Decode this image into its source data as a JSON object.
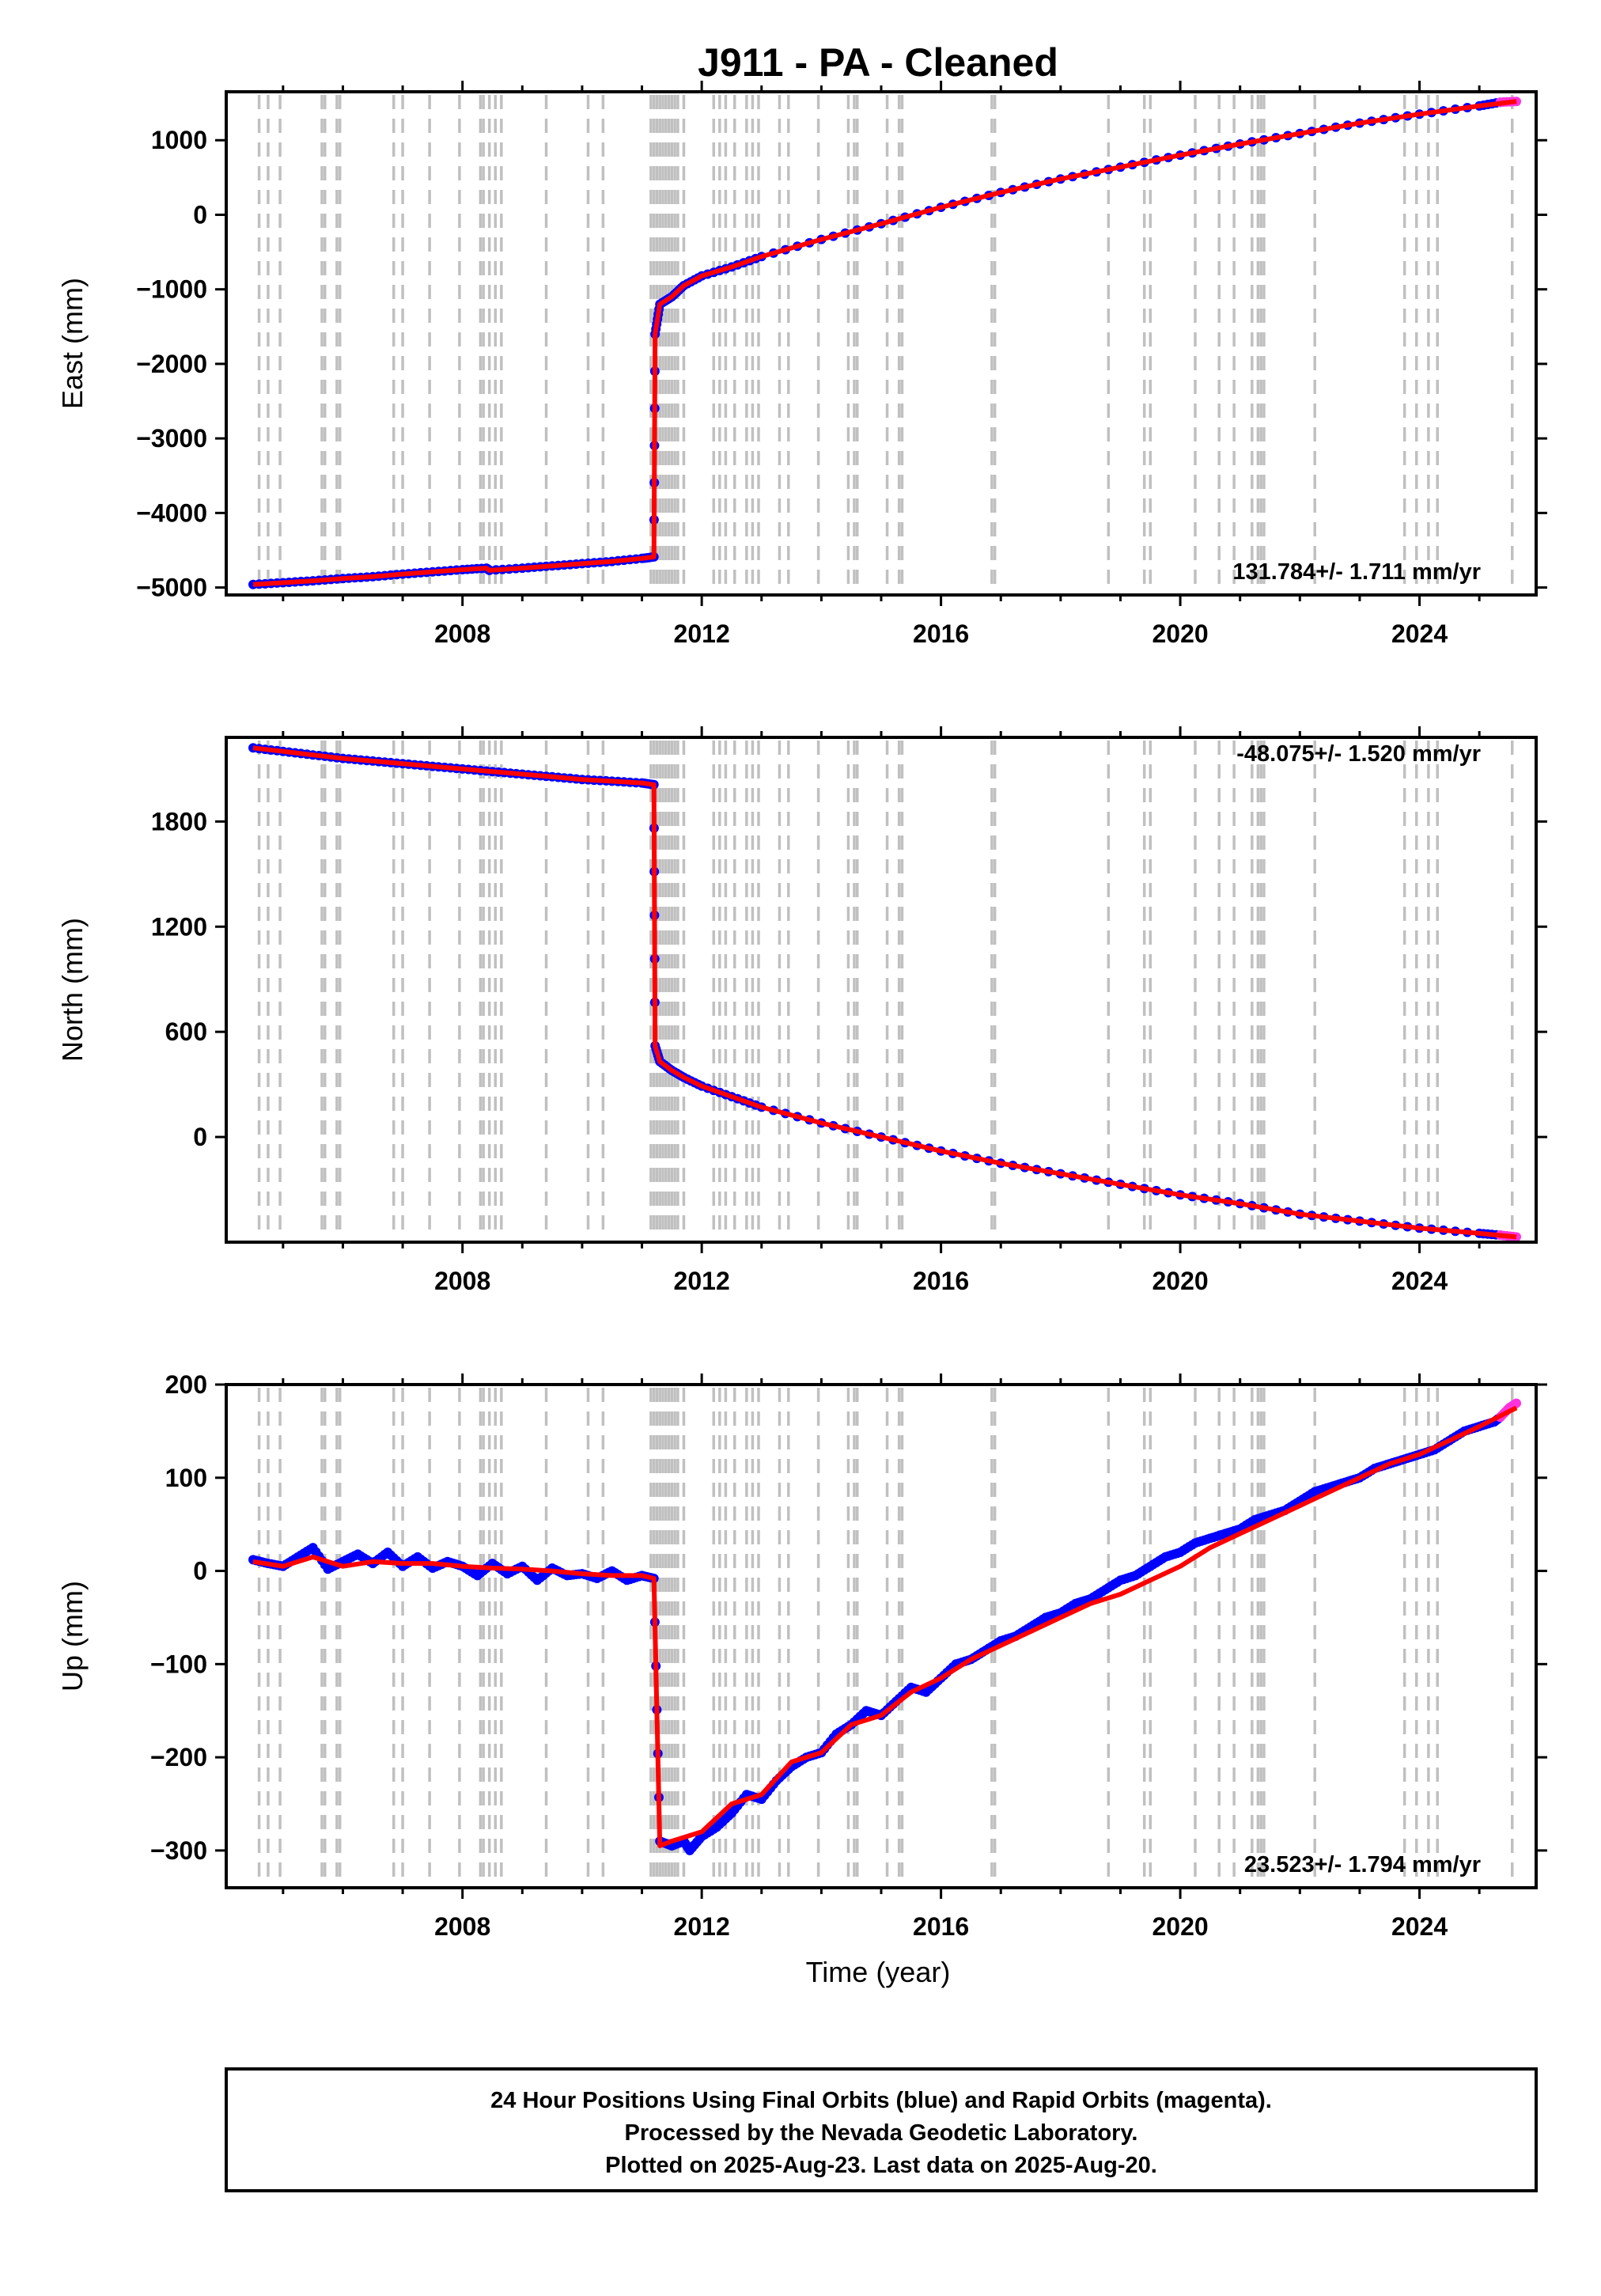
{
  "title": "J911  - PA - Cleaned",
  "xlabel": "Time (year)",
  "footer": {
    "line1": "24 Hour Positions Using Final Orbits (blue) and Rapid Orbits (magenta).",
    "line2": "Processed by the Nevada Geodetic Laboratory.",
    "line3": "Plotted on 2025-Aug-23. Last data on 2025-Aug-20."
  },
  "colors": {
    "final": "#0000ff",
    "rapid": "#ff33dd",
    "model": "#ff0000",
    "event_lines": "#c0c0c0",
    "axes": "#000000"
  },
  "event_lines_decimal_years": [
    2004.6,
    2004.75,
    2004.95,
    2005.65,
    2005.7,
    2005.9,
    2005.95,
    2006.85,
    2007.0,
    2007.45,
    2007.95,
    2008.3,
    2008.35,
    2008.45,
    2008.55,
    2008.65,
    2009.4,
    2010.1,
    2010.35,
    2011.15,
    2011.2,
    2011.25,
    2011.3,
    2011.35,
    2011.4,
    2011.45,
    2011.5,
    2011.55,
    2011.6,
    2011.7,
    2012.2,
    2012.3,
    2012.4,
    2012.55,
    2012.75,
    2012.85,
    2012.95,
    2013.3,
    2013.45,
    2013.95,
    2014.45,
    2014.55,
    2014.6,
    2015.1,
    2015.3,
    2015.35,
    2016.85,
    2016.9,
    2018.8,
    2019.4,
    2019.5,
    2020.25,
    2020.65,
    2020.9,
    2021.2,
    2021.3,
    2021.35,
    2021.4,
    2022.25,
    2023.75,
    2023.95,
    2024.15,
    2024.3,
    2025.55
  ],
  "chart_data": [
    {
      "type": "scatter",
      "component": "East",
      "ylabel": "East (mm)",
      "xlim": [
        2004.05,
        2025.95
      ],
      "ylim": [
        -5100,
        1650
      ],
      "yticks": [
        1000,
        0,
        -1000,
        -2000,
        -3000,
        -4000,
        -5000
      ],
      "xticks": [
        2008,
        2012,
        2016,
        2020,
        2024
      ],
      "rate_label": "131.784+/- 1.711 mm/yr",
      "series": [
        {
          "role": "final",
          "x": [
            2004.5,
            2005.0,
            2005.5,
            2006.0,
            2006.5,
            2007.0,
            2007.5,
            2008.0,
            2008.4,
            2008.45,
            2009.0,
            2009.5,
            2010.0,
            2010.5,
            2011.0,
            2011.2,
            2011.22,
            2011.3,
            2011.5,
            2011.7,
            2012.0,
            2012.5,
            2013.0,
            2014.0,
            2015.0,
            2016.0,
            2017.0,
            2018.0,
            2019.0,
            2020.0,
            2021.0,
            2022.0,
            2023.0,
            2024.0,
            2025.0,
            2025.35
          ],
          "y": [
            -4960,
            -4935,
            -4910,
            -4880,
            -4855,
            -4820,
            -4790,
            -4760,
            -4740,
            -4770,
            -4740,
            -4710,
            -4680,
            -4650,
            -4610,
            -4590,
            -1600,
            -1200,
            -1100,
            -950,
            -820,
            -700,
            -560,
            -330,
            -120,
            100,
            300,
            480,
            640,
            800,
            950,
            1090,
            1230,
            1350,
            1460,
            1510
          ]
        },
        {
          "role": "rapid",
          "x": [
            2025.35,
            2025.62
          ],
          "y": [
            1510,
            1520
          ]
        },
        {
          "role": "model",
          "x": [
            2004.5,
            2005.0,
            2005.5,
            2006.0,
            2006.5,
            2007.0,
            2007.5,
            2008.0,
            2008.4,
            2008.45,
            2009.0,
            2009.5,
            2010.0,
            2010.5,
            2011.0,
            2011.2,
            2011.22,
            2011.3,
            2011.5,
            2011.7,
            2012.0,
            2012.5,
            2013.0,
            2014.0,
            2015.0,
            2016.0,
            2017.0,
            2018.0,
            2019.0,
            2020.0,
            2021.0,
            2022.0,
            2023.0,
            2024.0,
            2025.0,
            2025.62
          ],
          "y": [
            -4960,
            -4935,
            -4910,
            -4880,
            -4855,
            -4820,
            -4790,
            -4760,
            -4740,
            -4770,
            -4740,
            -4710,
            -4680,
            -4650,
            -4610,
            -4590,
            -1600,
            -1200,
            -1100,
            -950,
            -820,
            -700,
            -560,
            -330,
            -120,
            100,
            300,
            480,
            640,
            800,
            950,
            1090,
            1230,
            1350,
            1460,
            1520
          ]
        }
      ]
    },
    {
      "type": "scatter",
      "component": "North",
      "ylabel": "North (mm)",
      "xlim": [
        2004.05,
        2025.95
      ],
      "ylim": [
        -600,
        2280
      ],
      "yticks": [
        1800,
        1200,
        600,
        0
      ],
      "xticks": [
        2008,
        2012,
        2016,
        2020,
        2024
      ],
      "rate_label": "-48.075+/- 1.520 mm/yr",
      "series": [
        {
          "role": "final",
          "x": [
            2004.5,
            2005.0,
            2005.5,
            2006.0,
            2006.5,
            2007.0,
            2007.5,
            2008.0,
            2008.5,
            2009.0,
            2009.5,
            2010.0,
            2010.5,
            2011.0,
            2011.2,
            2011.22,
            2011.3,
            2011.5,
            2011.7,
            2012.0,
            2012.5,
            2013.0,
            2014.0,
            2015.0,
            2016.0,
            2017.0,
            2018.0,
            2019.0,
            2020.0,
            2021.0,
            2022.0,
            2023.0,
            2024.0,
            2025.0,
            2025.35
          ],
          "y": [
            2220,
            2200,
            2180,
            2160,
            2145,
            2130,
            2115,
            2100,
            2085,
            2070,
            2055,
            2040,
            2030,
            2020,
            2010,
            520,
            430,
            380,
            340,
            290,
            230,
            170,
            80,
            0,
            -80,
            -150,
            -210,
            -270,
            -330,
            -380,
            -440,
            -480,
            -520,
            -550,
            -560
          ]
        },
        {
          "role": "rapid",
          "x": [
            2025.35,
            2025.62
          ],
          "y": [
            -560,
            -570
          ]
        },
        {
          "role": "model",
          "x": [
            2004.5,
            2005.0,
            2005.5,
            2006.0,
            2006.5,
            2007.0,
            2007.5,
            2008.0,
            2008.5,
            2009.0,
            2009.5,
            2010.0,
            2010.5,
            2011.0,
            2011.2,
            2011.22,
            2011.3,
            2011.5,
            2011.7,
            2012.0,
            2012.5,
            2013.0,
            2014.0,
            2015.0,
            2016.0,
            2017.0,
            2018.0,
            2019.0,
            2020.0,
            2021.0,
            2022.0,
            2023.0,
            2024.0,
            2025.0,
            2025.62
          ],
          "y": [
            2220,
            2200,
            2180,
            2160,
            2145,
            2130,
            2115,
            2100,
            2085,
            2070,
            2055,
            2040,
            2030,
            2020,
            2010,
            520,
            430,
            380,
            340,
            290,
            230,
            170,
            80,
            0,
            -80,
            -150,
            -210,
            -270,
            -330,
            -380,
            -440,
            -480,
            -520,
            -550,
            -570
          ]
        }
      ]
    },
    {
      "type": "scatter",
      "component": "Up",
      "ylabel": "Up (mm)",
      "xlim": [
        2004.05,
        2025.95
      ],
      "ylim": [
        -340,
        200
      ],
      "yticks": [
        200,
        100,
        0,
        -100,
        -200,
        -300
      ],
      "xticks": [
        2008,
        2012,
        2016,
        2020,
        2024
      ],
      "rate_label": "23.523+/- 1.794 mm/yr",
      "series": [
        {
          "role": "final",
          "x": [
            2004.5,
            2004.75,
            2005.0,
            2005.25,
            2005.5,
            2005.75,
            2006.0,
            2006.25,
            2006.5,
            2006.75,
            2007.0,
            2007.25,
            2007.5,
            2007.75,
            2008.0,
            2008.25,
            2008.5,
            2008.75,
            2009.0,
            2009.25,
            2009.5,
            2009.75,
            2010.0,
            2010.25,
            2010.5,
            2010.75,
            2011.0,
            2011.2,
            2011.3,
            2011.5,
            2011.7,
            2011.8,
            2012.0,
            2012.25,
            2012.5,
            2012.75,
            2013.0,
            2013.25,
            2013.5,
            2013.75,
            2014.0,
            2014.25,
            2014.5,
            2014.75,
            2015.0,
            2015.25,
            2015.5,
            2015.75,
            2016.0,
            2016.25,
            2016.5,
            2016.75,
            2017.0,
            2017.25,
            2017.5,
            2017.75,
            2018.0,
            2018.25,
            2018.5,
            2018.75,
            2019.0,
            2019.25,
            2019.5,
            2019.75,
            2020.0,
            2020.25,
            2020.5,
            2020.75,
            2021.0,
            2021.25,
            2021.5,
            2021.75,
            2022.0,
            2022.25,
            2022.5,
            2022.75,
            2023.0,
            2023.25,
            2023.5,
            2023.75,
            2024.0,
            2024.25,
            2024.5,
            2024.75,
            2025.0,
            2025.25,
            2025.35
          ],
          "y": [
            12,
            8,
            5,
            15,
            25,
            2,
            10,
            18,
            8,
            20,
            5,
            15,
            3,
            10,
            5,
            -5,
            8,
            -3,
            5,
            -10,
            3,
            -5,
            -3,
            -8,
            0,
            -10,
            -5,
            -8,
            -290,
            -295,
            -290,
            -300,
            -285,
            -275,
            -260,
            -240,
            -245,
            -225,
            -210,
            -200,
            -195,
            -175,
            -165,
            -150,
            -155,
            -140,
            -125,
            -130,
            -115,
            -100,
            -95,
            -85,
            -75,
            -70,
            -60,
            -50,
            -45,
            -35,
            -30,
            -20,
            -10,
            -5,
            5,
            15,
            20,
            30,
            35,
            40,
            45,
            55,
            60,
            65,
            75,
            85,
            90,
            95,
            100,
            110,
            115,
            120,
            125,
            130,
            140,
            150,
            155,
            160,
            165
          ]
        },
        {
          "role": "rapid",
          "x": [
            2025.35,
            2025.5,
            2025.62
          ],
          "y": [
            165,
            175,
            180
          ]
        },
        {
          "role": "model",
          "x": [
            2004.5,
            2005.0,
            2005.5,
            2006.0,
            2006.5,
            2007.0,
            2007.5,
            2008.0,
            2008.5,
            2009.0,
            2009.5,
            2010.0,
            2010.5,
            2011.0,
            2011.2,
            2011.3,
            2011.5,
            2012.0,
            2012.5,
            2013.0,
            2013.5,
            2014.0,
            2014.5,
            2015.0,
            2015.5,
            2016.0,
            2016.5,
            2017.0,
            2017.5,
            2018.0,
            2018.5,
            2019.0,
            2019.5,
            2020.0,
            2020.5,
            2021.0,
            2021.5,
            2022.0,
            2022.5,
            2023.0,
            2023.5,
            2024.0,
            2024.5,
            2025.0,
            2025.62
          ],
          "y": [
            10,
            5,
            15,
            5,
            10,
            8,
            8,
            5,
            3,
            2,
            0,
            -3,
            -5,
            -5,
            -8,
            -295,
            -290,
            -280,
            -250,
            -240,
            -205,
            -195,
            -165,
            -155,
            -130,
            -115,
            -95,
            -80,
            -65,
            -50,
            -35,
            -25,
            -10,
            5,
            25,
            40,
            55,
            70,
            85,
            100,
            115,
            125,
            140,
            155,
            175
          ]
        }
      ]
    }
  ]
}
